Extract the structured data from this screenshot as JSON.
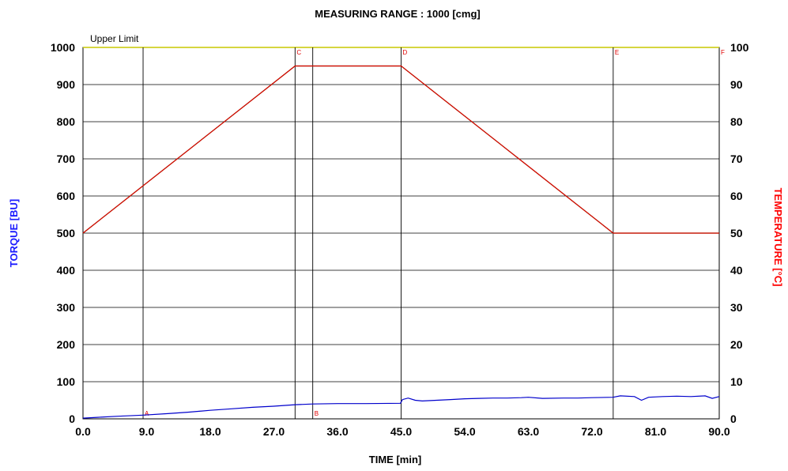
{
  "chart_data": {
    "type": "line",
    "title": "MEASURING RANGE : 1000 [cmg]",
    "xlabel": "TIME  [min]",
    "ylabel_left": "TORQUE  [BU]",
    "ylabel_right": "TEMPERATURE  [°C]",
    "xlim": [
      0,
      90
    ],
    "ylim_left": [
      0,
      1000
    ],
    "ylim_right": [
      0,
      100
    ],
    "x_ticks": [
      "0.0",
      "9.0",
      "18.0",
      "27.0",
      "36.0",
      "45.0",
      "54.0",
      "63.0",
      "72.0",
      "81.0",
      "90.0"
    ],
    "y_left_ticks": [
      "0",
      "100",
      "200",
      "300",
      "400",
      "500",
      "600",
      "700",
      "800",
      "900",
      "1000"
    ],
    "y_right_ticks": [
      "0",
      "10",
      "20",
      "30",
      "40",
      "50",
      "60",
      "70",
      "80",
      "90",
      "100"
    ],
    "grid": true,
    "upper_limit": {
      "label": "Upper Limit",
      "value": 1000,
      "color": "#c8c800"
    },
    "markers": [
      {
        "label": "A",
        "x": 8.5,
        "pos": "bottom"
      },
      {
        "label": "B",
        "x": 32.5,
        "pos": "bottom"
      },
      {
        "label": "C",
        "x": 30,
        "pos": "top"
      },
      {
        "label": "D",
        "x": 45,
        "pos": "top"
      },
      {
        "label": "E",
        "x": 75,
        "pos": "top"
      },
      {
        "label": "F",
        "x": 90,
        "pos": "top"
      }
    ],
    "series": [
      {
        "axis": "left",
        "color": "#0000cc",
        "x": [
          0,
          2,
          5,
          8.5,
          12,
          15,
          18,
          21,
          24,
          27,
          30,
          32.5,
          36,
          40,
          44.9,
          45.2,
          46,
          47,
          48,
          50,
          52,
          54,
          56,
          58,
          60,
          62,
          63,
          65,
          68,
          70,
          72,
          75,
          76,
          78,
          79,
          80,
          82,
          84,
          86,
          88,
          89,
          90
        ],
        "y": [
          2,
          4,
          7,
          10,
          14,
          18,
          23,
          27,
          31,
          34,
          38,
          40,
          41,
          41,
          42,
          52,
          56,
          50,
          48,
          50,
          52,
          54,
          55,
          56,
          56,
          57,
          58,
          55,
          56,
          56,
          57,
          58,
          62,
          60,
          50,
          58,
          60,
          61,
          60,
          62,
          55,
          60
        ]
      },
      {
        "axis": "right",
        "color": "#008000",
        "x": [
          0,
          30,
          45,
          75,
          90
        ],
        "y": [
          50,
          95,
          95,
          50,
          50
        ]
      },
      {
        "axis": "right",
        "color": "#e00000",
        "x": [
          0,
          30,
          32,
          45,
          63,
          75,
          76,
          90
        ],
        "y": [
          50,
          95,
          95,
          95,
          68,
          50,
          50,
          50
        ]
      }
    ]
  }
}
